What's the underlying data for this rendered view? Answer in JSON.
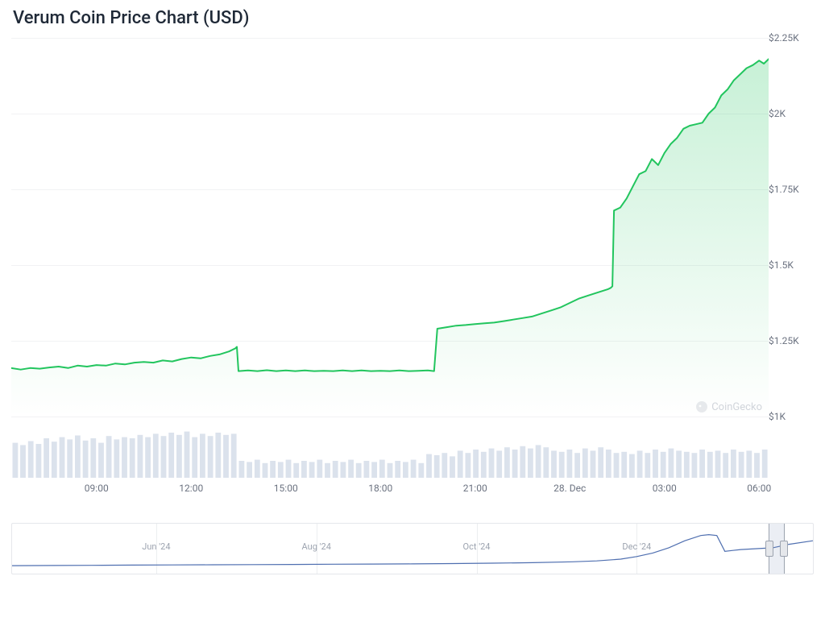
{
  "title": "Verum Coin Price Chart (USD)",
  "watermark": "CoinGecko",
  "main_chart": {
    "type": "area",
    "line_color": "#22c55e",
    "line_width": 2,
    "fill_top_color": "rgba(34,197,94,0.25)",
    "fill_bottom_color": "rgba(34,197,94,0.00)",
    "grid_color": "#f1f2f4",
    "background_color": "#ffffff",
    "y_axis": {
      "min": 1000,
      "max": 2250,
      "ticks": [
        1000,
        1250,
        1500,
        1750,
        2000,
        2250
      ],
      "tick_labels": [
        "$1K",
        "$1.25K",
        "$1.5K",
        "$1.75K",
        "$2K",
        "$2.25K"
      ],
      "label_color": "#6b7280",
      "label_fontsize": 12
    },
    "x_axis": {
      "min": 0,
      "max": 24,
      "ticks": [
        2.7,
        5.7,
        8.7,
        11.7,
        14.7,
        17.7,
        20.7,
        23.7
      ],
      "tick_labels": [
        "09:00",
        "12:00",
        "15:00",
        "18:00",
        "21:00",
        "28. Dec",
        "03:00",
        "06:00"
      ],
      "label_color": "#6b7280",
      "label_fontsize": 12
    },
    "data": [
      [
        0.0,
        1160
      ],
      [
        0.3,
        1155
      ],
      [
        0.6,
        1160
      ],
      [
        0.9,
        1158
      ],
      [
        1.2,
        1162
      ],
      [
        1.5,
        1165
      ],
      [
        1.8,
        1160
      ],
      [
        2.1,
        1168
      ],
      [
        2.4,
        1165
      ],
      [
        2.7,
        1170
      ],
      [
        3.0,
        1168
      ],
      [
        3.3,
        1175
      ],
      [
        3.6,
        1172
      ],
      [
        3.9,
        1178
      ],
      [
        4.2,
        1180
      ],
      [
        4.5,
        1178
      ],
      [
        4.8,
        1185
      ],
      [
        5.1,
        1182
      ],
      [
        5.4,
        1190
      ],
      [
        5.7,
        1195
      ],
      [
        6.0,
        1192
      ],
      [
        6.3,
        1200
      ],
      [
        6.6,
        1205
      ],
      [
        6.9,
        1215
      ],
      [
        7.1,
        1225
      ],
      [
        7.15,
        1230
      ],
      [
        7.2,
        1150
      ],
      [
        7.5,
        1152
      ],
      [
        7.8,
        1150
      ],
      [
        8.1,
        1153
      ],
      [
        8.4,
        1150
      ],
      [
        8.7,
        1152
      ],
      [
        9.0,
        1150
      ],
      [
        9.3,
        1152
      ],
      [
        9.6,
        1150
      ],
      [
        9.9,
        1151
      ],
      [
        10.2,
        1150
      ],
      [
        10.5,
        1152
      ],
      [
        10.8,
        1150
      ],
      [
        11.1,
        1152
      ],
      [
        11.4,
        1150
      ],
      [
        11.7,
        1151
      ],
      [
        12.0,
        1150
      ],
      [
        12.3,
        1152
      ],
      [
        12.6,
        1150
      ],
      [
        12.9,
        1151
      ],
      [
        13.2,
        1152
      ],
      [
        13.4,
        1150
      ],
      [
        13.5,
        1290
      ],
      [
        13.8,
        1295
      ],
      [
        14.1,
        1300
      ],
      [
        14.4,
        1302
      ],
      [
        14.7,
        1305
      ],
      [
        15.0,
        1308
      ],
      [
        15.3,
        1310
      ],
      [
        15.6,
        1315
      ],
      [
        15.9,
        1320
      ],
      [
        16.2,
        1325
      ],
      [
        16.5,
        1330
      ],
      [
        16.8,
        1340
      ],
      [
        17.1,
        1350
      ],
      [
        17.4,
        1360
      ],
      [
        17.7,
        1375
      ],
      [
        18.0,
        1390
      ],
      [
        18.3,
        1400
      ],
      [
        18.6,
        1410
      ],
      [
        18.9,
        1420
      ],
      [
        19.0,
        1425
      ],
      [
        19.05,
        1430
      ],
      [
        19.1,
        1680
      ],
      [
        19.3,
        1690
      ],
      [
        19.5,
        1720
      ],
      [
        19.7,
        1760
      ],
      [
        19.9,
        1800
      ],
      [
        20.1,
        1810
      ],
      [
        20.3,
        1850
      ],
      [
        20.5,
        1830
      ],
      [
        20.7,
        1870
      ],
      [
        20.9,
        1900
      ],
      [
        21.1,
        1920
      ],
      [
        21.3,
        1950
      ],
      [
        21.5,
        1960
      ],
      [
        21.7,
        1965
      ],
      [
        21.9,
        1970
      ],
      [
        22.1,
        2000
      ],
      [
        22.3,
        2020
      ],
      [
        22.5,
        2060
      ],
      [
        22.7,
        2080
      ],
      [
        22.9,
        2110
      ],
      [
        23.1,
        2130
      ],
      [
        23.3,
        2150
      ],
      [
        23.5,
        2160
      ],
      [
        23.7,
        2175
      ],
      [
        23.85,
        2165
      ],
      [
        24.0,
        2180
      ]
    ]
  },
  "volume_chart": {
    "type": "bar",
    "bar_color": "#dbe2ec",
    "bar_width_ratio": 0.7,
    "y_max": 100,
    "data": [
      62,
      58,
      65,
      60,
      70,
      64,
      72,
      68,
      75,
      66,
      70,
      62,
      74,
      68,
      72,
      70,
      76,
      72,
      78,
      74,
      80,
      76,
      82,
      72,
      78,
      74,
      80,
      76,
      78,
      30,
      28,
      32,
      26,
      30,
      28,
      32,
      26,
      30,
      28,
      32,
      26,
      30,
      28,
      32,
      26,
      30,
      28,
      32,
      26,
      30,
      28,
      32,
      26,
      42,
      40,
      44,
      38,
      48,
      44,
      50,
      46,
      52,
      48,
      54,
      50,
      56,
      52,
      58,
      54,
      48,
      46,
      50,
      44,
      52,
      48,
      54,
      50,
      44,
      46,
      42,
      48,
      44,
      50,
      46,
      52,
      48,
      46,
      44,
      50,
      46,
      48,
      44,
      50,
      46,
      48,
      44,
      50
    ]
  },
  "navigator": {
    "type": "line",
    "line_color": "#4f6fb0",
    "line_width": 1.2,
    "border_color": "#e5e7eb",
    "x_ticks": [
      0.18,
      0.38,
      0.58,
      0.78
    ],
    "x_tick_labels": [
      "Jun '24",
      "Aug '24",
      "Oct '24",
      "Dec '24"
    ],
    "x_tick_color": "#9ca3af",
    "selection": {
      "start": 0.945,
      "end": 0.965
    },
    "y_min": 0,
    "y_max": 2300,
    "data": [
      [
        0.0,
        180
      ],
      [
        0.05,
        190
      ],
      [
        0.1,
        200
      ],
      [
        0.15,
        210
      ],
      [
        0.2,
        220
      ],
      [
        0.25,
        230
      ],
      [
        0.3,
        240
      ],
      [
        0.35,
        250
      ],
      [
        0.4,
        260
      ],
      [
        0.45,
        270
      ],
      [
        0.5,
        280
      ],
      [
        0.55,
        300
      ],
      [
        0.6,
        320
      ],
      [
        0.65,
        350
      ],
      [
        0.7,
        400
      ],
      [
        0.73,
        450
      ],
      [
        0.76,
        550
      ],
      [
        0.78,
        700
      ],
      [
        0.8,
        900
      ],
      [
        0.82,
        1200
      ],
      [
        0.84,
        1600
      ],
      [
        0.86,
        1900
      ],
      [
        0.87,
        1950
      ],
      [
        0.88,
        1900
      ],
      [
        0.89,
        1000
      ],
      [
        0.9,
        1050
      ],
      [
        0.91,
        1100
      ],
      [
        0.93,
        1150
      ],
      [
        0.95,
        1200
      ],
      [
        0.97,
        1400
      ],
      [
        1.0,
        1600
      ]
    ]
  }
}
